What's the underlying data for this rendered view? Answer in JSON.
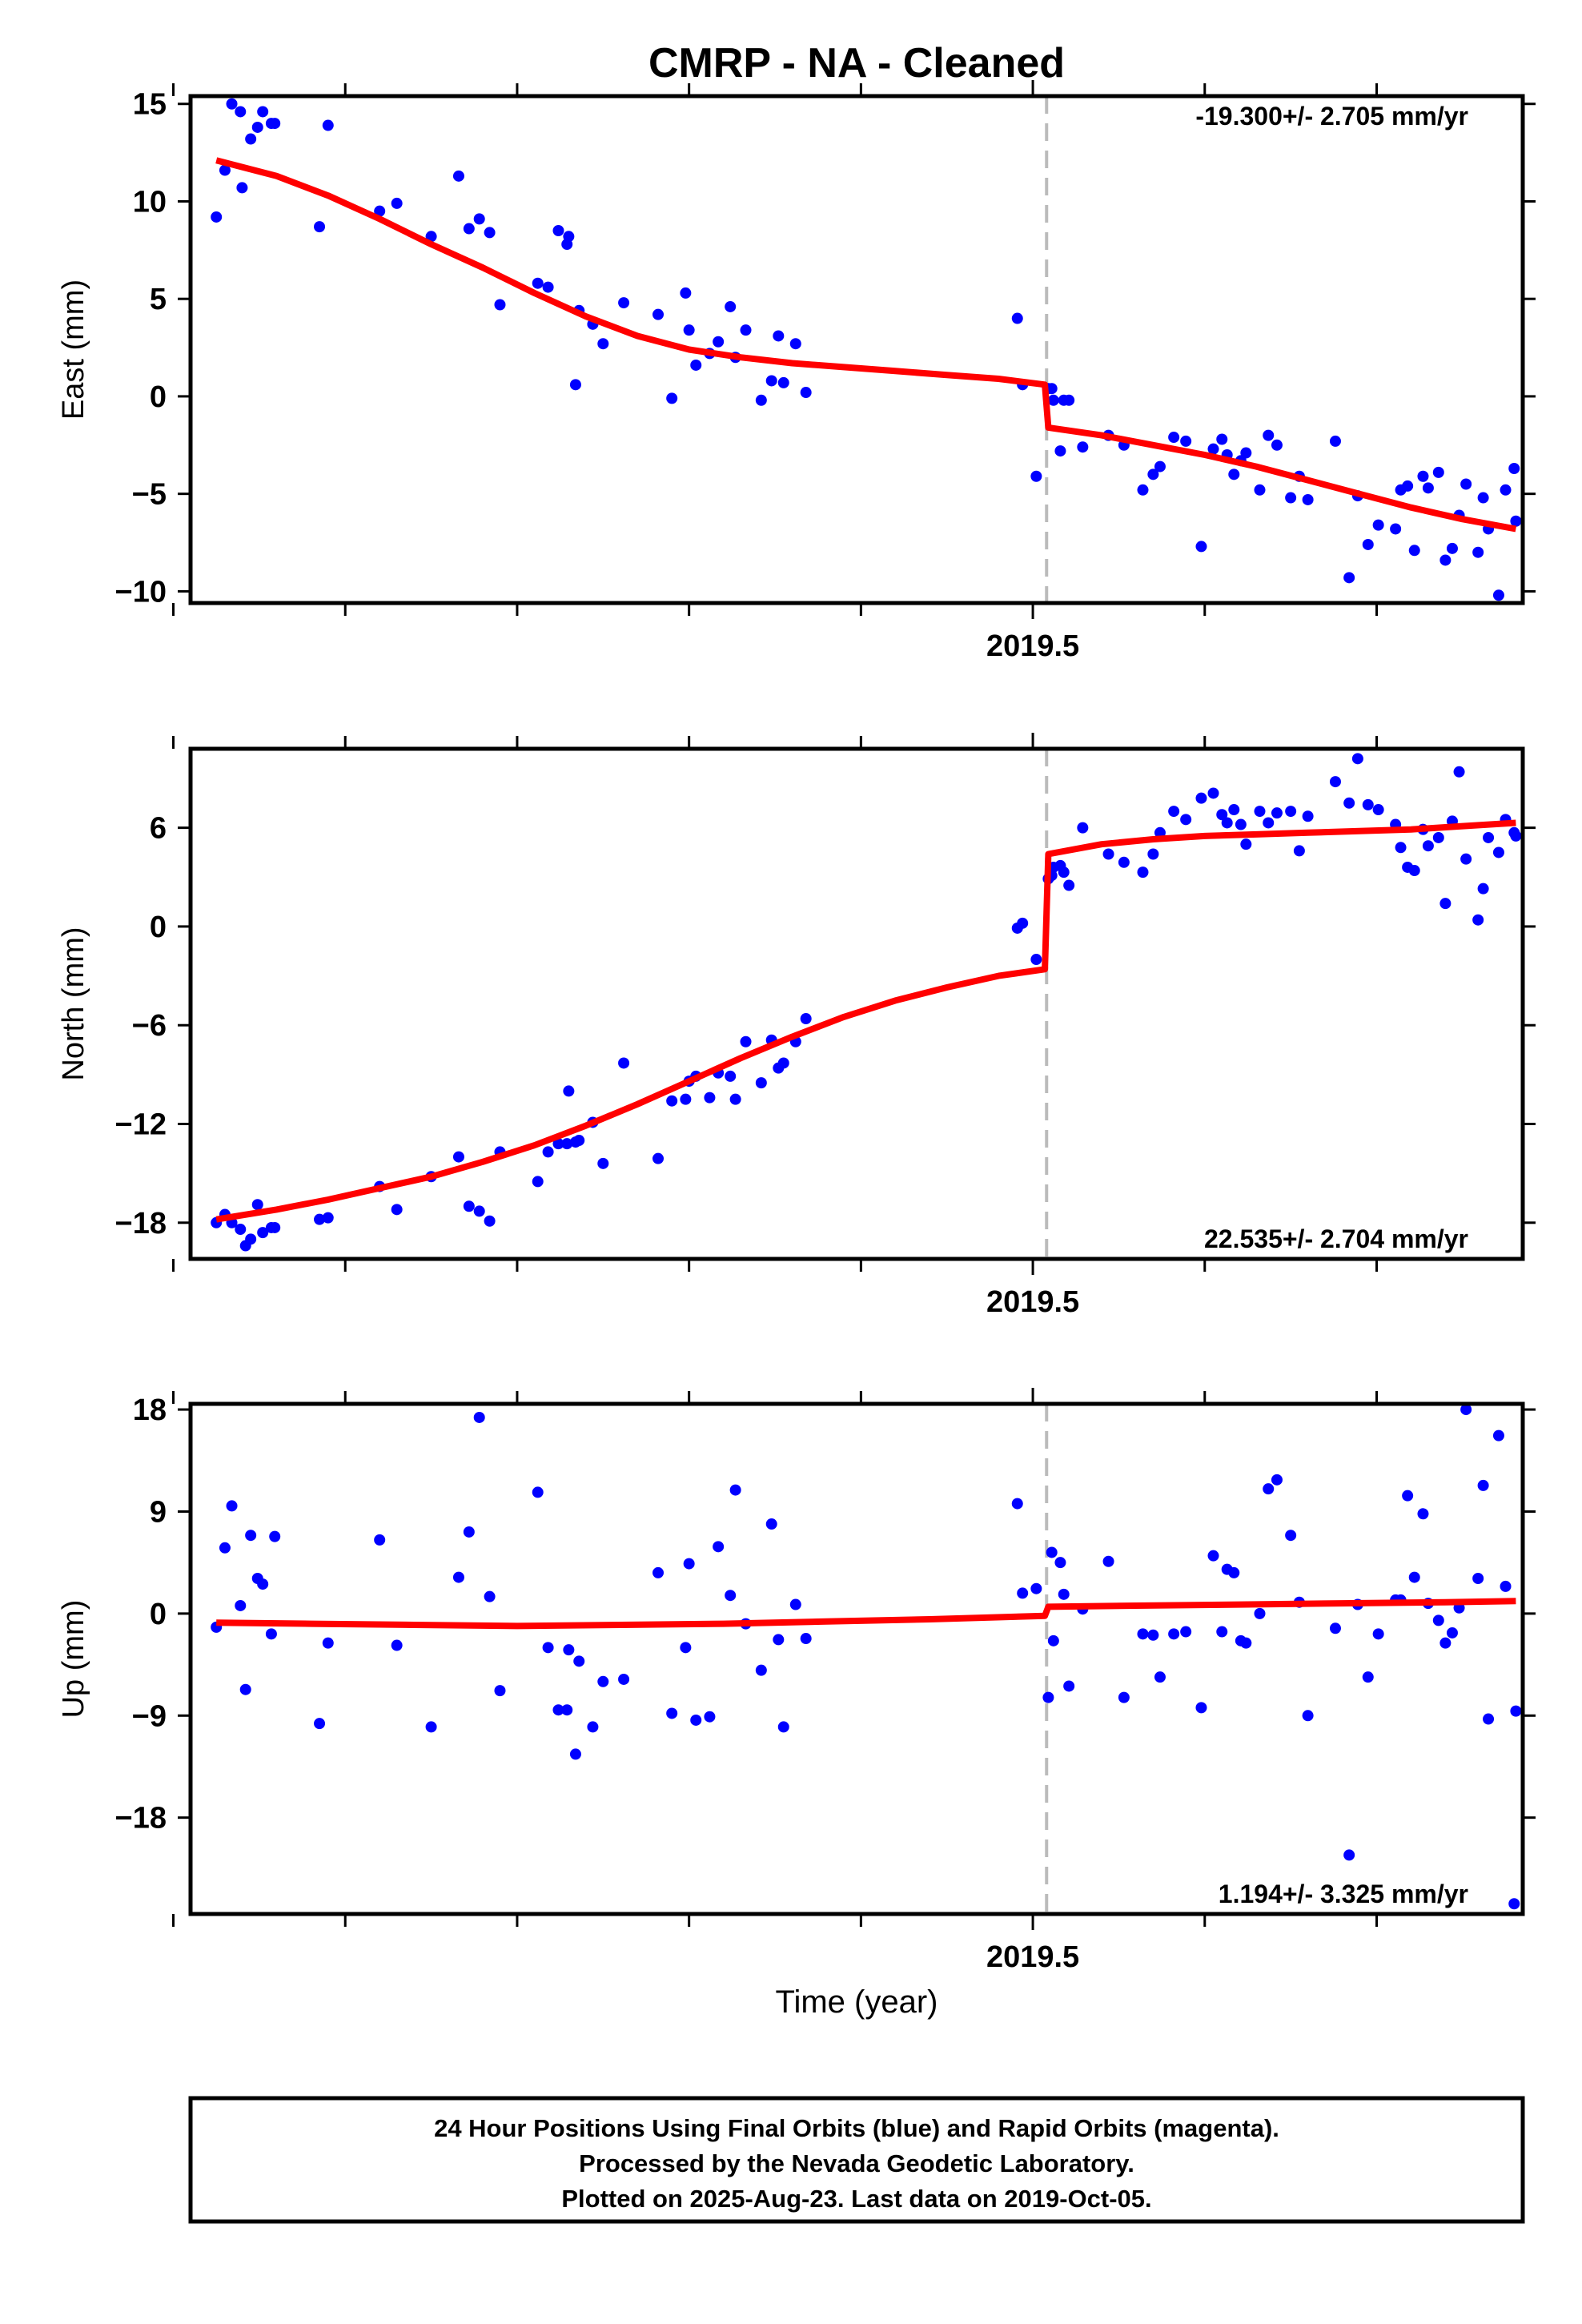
{
  "title": "CMRP  - NA - Cleaned",
  "xaxis_label": "Time (year)",
  "colors": {
    "points": "#0000ff",
    "fit": "#ff0000",
    "offset_line": "#bbbbbb"
  },
  "footer": {
    "line1": "24 Hour Positions Using Final Orbits (blue) and Rapid Orbits (magenta).",
    "line2": "Processed by the Nevada Geodetic Laboratory.",
    "line3": "Plotted on 2025-Aug-23. Last data on 2019-Oct-05."
  },
  "chart_data": [
    {
      "type": "scatter",
      "ylabel": "East (mm)",
      "rate_text": "-19.300+/- 2.705 mm/yr",
      "xlim": [
        2019.01,
        2019.785
      ],
      "ylim": [
        -10.6,
        15.4
      ],
      "yticks": [
        -10,
        -5,
        0,
        5,
        10,
        15
      ],
      "ytick_labels": [
        "−10",
        "−5",
        "0",
        "5",
        "10",
        "15"
      ],
      "xticks_minor": [
        2019.0,
        2019.1,
        2019.2,
        2019.3,
        2019.4,
        2019.6,
        2019.7
      ],
      "xtick_major": 2019.5,
      "xtick_major_label": "2019.5",
      "offset_x": 2019.508,
      "points_x": [
        2019.025,
        2019.03,
        2019.034,
        2019.039,
        2019.04,
        2019.045,
        2019.049,
        2019.052,
        2019.057,
        2019.059,
        2019.085,
        2019.09,
        2019.12,
        2019.13,
        2019.15,
        2019.166,
        2019.172,
        2019.178,
        2019.184,
        2019.19,
        2019.212,
        2019.218,
        2019.224,
        2019.229,
        2019.23,
        2019.234,
        2019.236,
        2019.244,
        2019.25,
        2019.262,
        2019.282,
        2019.29,
        2019.298,
        2019.3,
        2019.304,
        2019.312,
        2019.317,
        2019.324,
        2019.327,
        2019.333,
        2019.342,
        2019.348,
        2019.352,
        2019.355,
        2019.362,
        2019.368,
        2019.491,
        2019.494,
        2019.502,
        2019.509,
        2019.511,
        2019.512,
        2019.516,
        2019.518,
        2019.521,
        2019.529,
        2019.544,
        2019.553,
        2019.564,
        2019.57,
        2019.574,
        2019.582,
        2019.589,
        2019.598,
        2019.605,
        2019.61,
        2019.613,
        2019.617,
        2019.621,
        2019.624,
        2019.632,
        2019.637,
        2019.642,
        2019.65,
        2019.655,
        2019.66,
        2019.676,
        2019.684,
        2019.689,
        2019.695,
        2019.701,
        2019.711,
        2019.714,
        2019.718,
        2019.722,
        2019.727,
        2019.73,
        2019.736,
        2019.74,
        2019.744,
        2019.748,
        2019.752,
        2019.759,
        2019.762,
        2019.765,
        2019.771,
        2019.775,
        2019.78,
        2019.781
      ],
      "points_y": [
        9.2,
        11.6,
        15.0,
        14.6,
        10.7,
        13.2,
        13.8,
        14.6,
        14.0,
        14.0,
        8.7,
        13.9,
        9.5,
        9.9,
        8.2,
        11.3,
        8.6,
        9.1,
        8.4,
        4.7,
        5.8,
        5.6,
        8.5,
        7.8,
        8.2,
        0.6,
        4.4,
        3.7,
        2.7,
        4.8,
        4.2,
        -0.1,
        5.3,
        3.4,
        1.6,
        2.2,
        2.8,
        4.6,
        2.0,
        3.4,
        -0.2,
        0.8,
        3.1,
        0.7,
        2.7,
        0.2,
        4.0,
        0.6,
        -4.1,
        0.4,
        0.4,
        -0.2,
        -2.8,
        -0.2,
        -0.2,
        -2.6,
        -2.0,
        -2.5,
        -4.8,
        -4.0,
        -3.6,
        -2.1,
        -2.3,
        -7.7,
        -2.7,
        -2.2,
        -3.0,
        -4.0,
        -3.3,
        -2.9,
        -4.8,
        -2.0,
        -2.5,
        -5.2,
        -4.1,
        -5.3,
        -2.3,
        -9.3,
        -5.1,
        -7.6,
        -6.6,
        -6.8,
        -4.8,
        -4.6,
        -7.9,
        -4.1,
        -4.7,
        -3.9,
        -8.4,
        -7.8,
        -6.1,
        -4.5,
        -8.0,
        -5.2,
        -6.8,
        -10.2,
        -4.8,
        -3.7,
        -6.4
      ],
      "fit_x": [
        2019.025,
        2019.06,
        2019.09,
        2019.12,
        2019.15,
        2019.18,
        2019.21,
        2019.24,
        2019.27,
        2019.3,
        2019.33,
        2019.36,
        2019.39,
        2019.42,
        2019.45,
        2019.48,
        2019.507,
        2019.509,
        2019.54,
        2019.57,
        2019.6,
        2019.63,
        2019.66,
        2019.69,
        2019.72,
        2019.75,
        2019.781
      ],
      "fit_y": [
        12.1,
        11.3,
        10.3,
        9.1,
        7.8,
        6.6,
        5.3,
        4.1,
        3.1,
        2.4,
        2.0,
        1.7,
        1.5,
        1.3,
        1.1,
        0.9,
        0.6,
        -1.6,
        -2.0,
        -2.5,
        -3.0,
        -3.6,
        -4.3,
        -5.0,
        -5.7,
        -6.3,
        -6.8
      ]
    },
    {
      "type": "scatter",
      "ylabel": "North (mm)",
      "rate_text": "22.535+/- 2.704 mm/yr",
      "xlim": [
        2019.01,
        2019.785
      ],
      "ylim": [
        -20.2,
        10.8
      ],
      "yticks": [
        -18,
        -12,
        -6,
        0,
        6
      ],
      "ytick_labels": [
        "−18",
        "−12",
        "−6",
        "0",
        "6"
      ],
      "xticks_minor": [
        2019.0,
        2019.1,
        2019.2,
        2019.3,
        2019.4,
        2019.6,
        2019.7
      ],
      "xtick_major": 2019.5,
      "xtick_major_label": "2019.5",
      "offset_x": 2019.508,
      "points_x": [
        2019.025,
        2019.03,
        2019.034,
        2019.039,
        2019.042,
        2019.045,
        2019.049,
        2019.052,
        2019.057,
        2019.059,
        2019.085,
        2019.09,
        2019.12,
        2019.13,
        2019.15,
        2019.166,
        2019.172,
        2019.178,
        2019.184,
        2019.19,
        2019.212,
        2019.218,
        2019.224,
        2019.229,
        2019.23,
        2019.234,
        2019.236,
        2019.244,
        2019.25,
        2019.262,
        2019.282,
        2019.29,
        2019.298,
        2019.3,
        2019.304,
        2019.312,
        2019.317,
        2019.324,
        2019.327,
        2019.333,
        2019.342,
        2019.348,
        2019.352,
        2019.355,
        2019.362,
        2019.368,
        2019.491,
        2019.494,
        2019.502,
        2019.509,
        2019.511,
        2019.512,
        2019.516,
        2019.518,
        2019.521,
        2019.529,
        2019.544,
        2019.553,
        2019.564,
        2019.57,
        2019.574,
        2019.582,
        2019.589,
        2019.598,
        2019.605,
        2019.61,
        2019.613,
        2019.617,
        2019.621,
        2019.624,
        2019.632,
        2019.637,
        2019.642,
        2019.65,
        2019.655,
        2019.66,
        2019.676,
        2019.684,
        2019.689,
        2019.695,
        2019.701,
        2019.711,
        2019.714,
        2019.718,
        2019.722,
        2019.727,
        2019.73,
        2019.736,
        2019.74,
        2019.744,
        2019.748,
        2019.752,
        2019.759,
        2019.762,
        2019.765,
        2019.771,
        2019.775,
        2019.78,
        2019.781
      ],
      "points_y": [
        -18.0,
        -17.5,
        -18.0,
        -18.4,
        -19.4,
        -19.0,
        -16.9,
        -18.6,
        -18.3,
        -18.3,
        -17.8,
        -17.7,
        -15.8,
        -17.2,
        -15.2,
        -14.0,
        -17.0,
        -17.3,
        -17.9,
        -13.7,
        -15.5,
        -13.7,
        -13.2,
        -13.2,
        -10.0,
        -13.1,
        -13.0,
        -11.9,
        -14.4,
        -8.3,
        -14.1,
        -10.6,
        -10.5,
        -9.4,
        -9.1,
        -10.4,
        -8.9,
        -9.1,
        -10.5,
        -7.0,
        -9.5,
        -6.9,
        -8.6,
        -8.3,
        -7.0,
        -5.6,
        -0.1,
        0.2,
        -2.0,
        2.9,
        3.1,
        3.6,
        3.7,
        3.3,
        2.5,
        6.0,
        4.4,
        3.9,
        3.3,
        4.4,
        5.7,
        7.0,
        6.5,
        7.8,
        8.1,
        6.8,
        6.3,
        7.1,
        6.2,
        5.0,
        7.0,
        6.3,
        6.9,
        7.0,
        4.6,
        6.7,
        8.8,
        7.5,
        10.2,
        7.4,
        7.1,
        6.2,
        4.8,
        3.6,
        3.4,
        5.9,
        4.9,
        5.4,
        1.4,
        6.4,
        9.4,
        4.1,
        0.4,
        2.3,
        5.4,
        4.5,
        6.5,
        5.7,
        5.5
      ],
      "fit_x": [
        2019.025,
        2019.06,
        2019.09,
        2019.12,
        2019.15,
        2019.18,
        2019.21,
        2019.24,
        2019.27,
        2019.3,
        2019.33,
        2019.36,
        2019.39,
        2019.42,
        2019.45,
        2019.48,
        2019.507,
        2019.509,
        2019.54,
        2019.57,
        2019.6,
        2019.63,
        2019.66,
        2019.69,
        2019.72,
        2019.75,
        2019.781
      ],
      "fit_y": [
        -17.8,
        -17.2,
        -16.6,
        -15.9,
        -15.2,
        -14.3,
        -13.3,
        -12.1,
        -10.8,
        -9.4,
        -8.0,
        -6.7,
        -5.5,
        -4.5,
        -3.7,
        -3.0,
        -2.6,
        4.4,
        5.0,
        5.3,
        5.5,
        5.6,
        5.7,
        5.8,
        5.9,
        6.1,
        6.3
      ]
    },
    {
      "type": "scatter",
      "ylabel": "Up (mm)",
      "rate_text": "1.194+/- 3.325 mm/yr",
      "xlim": [
        2019.01,
        2019.785
      ],
      "ylim": [
        -26.5,
        18.5
      ],
      "yticks": [
        -18,
        -9,
        0,
        9,
        18
      ],
      "ytick_labels": [
        "−18",
        "−9",
        "0",
        "9",
        "18"
      ],
      "xticks_minor": [
        2019.0,
        2019.1,
        2019.2,
        2019.3,
        2019.4,
        2019.6,
        2019.7
      ],
      "xtick_major": 2019.5,
      "xtick_major_label": "2019.5",
      "offset_x": 2019.508,
      "points_x": [
        2019.025,
        2019.03,
        2019.034,
        2019.039,
        2019.042,
        2019.045,
        2019.049,
        2019.052,
        2019.057,
        2019.059,
        2019.085,
        2019.09,
        2019.12,
        2019.13,
        2019.15,
        2019.166,
        2019.172,
        2019.178,
        2019.184,
        2019.19,
        2019.212,
        2019.218,
        2019.224,
        2019.229,
        2019.23,
        2019.234,
        2019.236,
        2019.244,
        2019.25,
        2019.262,
        2019.282,
        2019.29,
        2019.298,
        2019.3,
        2019.304,
        2019.312,
        2019.317,
        2019.324,
        2019.327,
        2019.333,
        2019.342,
        2019.348,
        2019.352,
        2019.355,
        2019.362,
        2019.368,
        2019.491,
        2019.494,
        2019.502,
        2019.509,
        2019.511,
        2019.512,
        2019.516,
        2019.518,
        2019.521,
        2019.529,
        2019.544,
        2019.553,
        2019.564,
        2019.57,
        2019.574,
        2019.582,
        2019.589,
        2019.598,
        2019.605,
        2019.61,
        2019.613,
        2019.617,
        2019.621,
        2019.624,
        2019.632,
        2019.637,
        2019.642,
        2019.65,
        2019.655,
        2019.66,
        2019.676,
        2019.684,
        2019.689,
        2019.695,
        2019.701,
        2019.711,
        2019.714,
        2019.718,
        2019.722,
        2019.727,
        2019.73,
        2019.736,
        2019.74,
        2019.744,
        2019.748,
        2019.752,
        2019.759,
        2019.762,
        2019.765,
        2019.771,
        2019.775,
        2019.78,
        2019.781
      ],
      "points_y": [
        -1.2,
        5.8,
        9.5,
        0.7,
        -6.7,
        6.9,
        3.1,
        2.6,
        -1.8,
        6.8,
        -9.7,
        -2.6,
        6.5,
        -2.8,
        -10.0,
        3.2,
        7.2,
        17.3,
        1.5,
        -6.8,
        10.7,
        -3.0,
        -8.5,
        -8.5,
        -3.2,
        -12.4,
        -4.2,
        -10.0,
        -6.0,
        -5.8,
        3.6,
        -8.8,
        -3.0,
        4.4,
        -9.4,
        -9.1,
        5.9,
        1.6,
        10.9,
        -0.9,
        -5.0,
        7.9,
        -2.3,
        -10.0,
        0.8,
        -2.2,
        9.7,
        1.8,
        2.2,
        -7.4,
        5.4,
        -2.4,
        4.5,
        1.7,
        -6.4,
        0.4,
        4.6,
        -7.4,
        -1.8,
        -1.9,
        -5.6,
        -1.8,
        -1.6,
        -8.3,
        5.1,
        -1.6,
        3.9,
        3.6,
        -2.4,
        -2.6,
        0.0,
        11.0,
        11.8,
        6.9,
        1.0,
        -9.0,
        -1.3,
        -21.3,
        0.8,
        -5.6,
        -1.8,
        1.2,
        1.2,
        10.4,
        3.2,
        8.8,
        0.9,
        -0.6,
        -2.6,
        -1.7,
        0.5,
        18.0,
        3.1,
        11.3,
        -9.3,
        15.7,
        2.4,
        -25.6,
        -8.6
      ],
      "fit_x": [
        2019.025,
        2019.08,
        2019.14,
        2019.2,
        2019.26,
        2019.32,
        2019.38,
        2019.44,
        2019.507,
        2019.509,
        2019.56,
        2019.62,
        2019.68,
        2019.74,
        2019.781
      ],
      "fit_y": [
        -0.8,
        -0.9,
        -1.0,
        -1.1,
        -1.0,
        -0.9,
        -0.7,
        -0.5,
        -0.2,
        0.6,
        0.7,
        0.8,
        0.9,
        1.0,
        1.1
      ]
    }
  ]
}
